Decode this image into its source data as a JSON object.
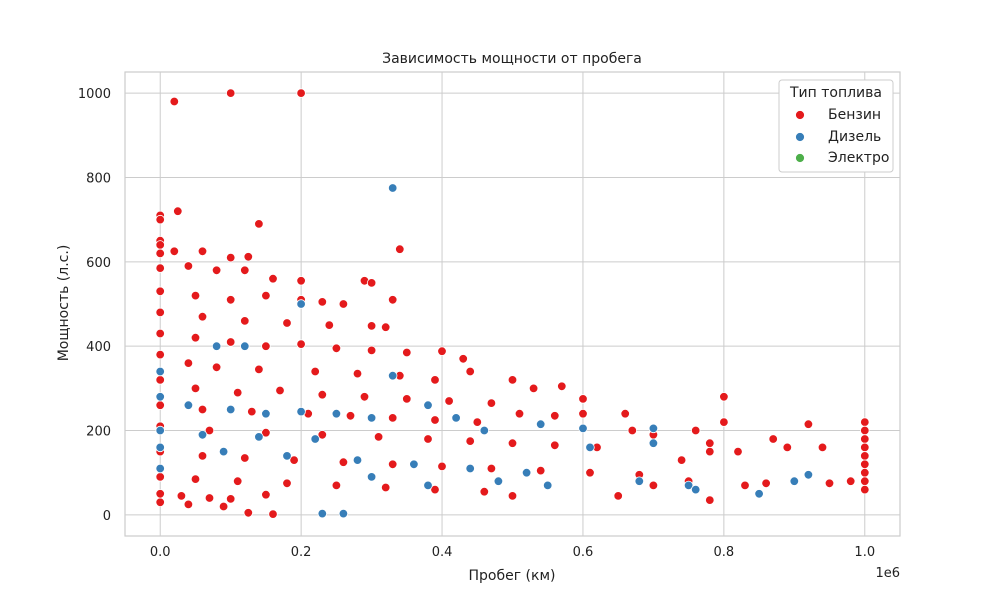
{
  "chart_data": {
    "type": "scatter",
    "title": "Зависимость мощности от пробега",
    "xlabel": "Пробег (км)",
    "ylabel": "Мощность (л.с.)",
    "x_offset_label": "1e6",
    "xlim": [
      -50000,
      1050000
    ],
    "ylim": [
      -50,
      1050
    ],
    "x_ticks": [
      0,
      200000,
      400000,
      600000,
      800000,
      1000000
    ],
    "x_tick_labels": [
      "0.0",
      "0.2",
      "0.4",
      "0.6",
      "0.8",
      "1.0"
    ],
    "y_ticks": [
      0,
      200,
      400,
      600,
      800,
      1000
    ],
    "y_tick_labels": [
      "0",
      "200",
      "400",
      "600",
      "800",
      "1000"
    ],
    "grid": true,
    "legend": {
      "title": "Тип топлива",
      "placement": "top-right",
      "entries": [
        {
          "label": "Бензин",
          "color": "#e41a1c"
        },
        {
          "label": "Дизель",
          "color": "#377eb8"
        },
        {
          "label": "Электро",
          "color": "#4daf4a"
        }
      ]
    },
    "series": [
      {
        "name": "Бензин",
        "color": "#e41a1c",
        "points": [
          [
            20000,
            980
          ],
          [
            100000,
            1000
          ],
          [
            200000,
            1000
          ],
          [
            25000,
            720
          ],
          [
            0,
            710
          ],
          [
            0,
            700
          ],
          [
            140000,
            690
          ],
          [
            340000,
            630
          ],
          [
            0,
            650
          ],
          [
            0,
            640
          ],
          [
            0,
            620
          ],
          [
            20000,
            625
          ],
          [
            60000,
            625
          ],
          [
            100000,
            610
          ],
          [
            125000,
            612
          ],
          [
            0,
            585
          ],
          [
            40000,
            590
          ],
          [
            80000,
            580
          ],
          [
            120000,
            580
          ],
          [
            160000,
            560
          ],
          [
            200000,
            555
          ],
          [
            290000,
            555
          ],
          [
            300000,
            550
          ],
          [
            0,
            530
          ],
          [
            50000,
            520
          ],
          [
            100000,
            510
          ],
          [
            150000,
            520
          ],
          [
            200000,
            510
          ],
          [
            230000,
            505
          ],
          [
            260000,
            500
          ],
          [
            330000,
            510
          ],
          [
            0,
            480
          ],
          [
            60000,
            470
          ],
          [
            120000,
            460
          ],
          [
            180000,
            455
          ],
          [
            240000,
            450
          ],
          [
            300000,
            448
          ],
          [
            320000,
            445
          ],
          [
            0,
            430
          ],
          [
            50000,
            420
          ],
          [
            100000,
            410
          ],
          [
            150000,
            400
          ],
          [
            200000,
            405
          ],
          [
            250000,
            395
          ],
          [
            300000,
            390
          ],
          [
            350000,
            385
          ],
          [
            400000,
            388
          ],
          [
            430000,
            370
          ],
          [
            0,
            380
          ],
          [
            40000,
            360
          ],
          [
            80000,
            350
          ],
          [
            140000,
            345
          ],
          [
            220000,
            340
          ],
          [
            280000,
            335
          ],
          [
            340000,
            330
          ],
          [
            390000,
            320
          ],
          [
            440000,
            340
          ],
          [
            500000,
            320
          ],
          [
            0,
            320
          ],
          [
            50000,
            300
          ],
          [
            110000,
            290
          ],
          [
            170000,
            295
          ],
          [
            230000,
            285
          ],
          [
            290000,
            280
          ],
          [
            350000,
            275
          ],
          [
            410000,
            270
          ],
          [
            470000,
            265
          ],
          [
            530000,
            300
          ],
          [
            570000,
            305
          ],
          [
            600000,
            275
          ],
          [
            0,
            260
          ],
          [
            60000,
            250
          ],
          [
            130000,
            245
          ],
          [
            210000,
            240
          ],
          [
            270000,
            235
          ],
          [
            330000,
            230
          ],
          [
            390000,
            225
          ],
          [
            450000,
            220
          ],
          [
            510000,
            240
          ],
          [
            560000,
            235
          ],
          [
            600000,
            240
          ],
          [
            660000,
            240
          ],
          [
            0,
            210
          ],
          [
            70000,
            200
          ],
          [
            150000,
            195
          ],
          [
            230000,
            190
          ],
          [
            310000,
            185
          ],
          [
            380000,
            180
          ],
          [
            440000,
            175
          ],
          [
            500000,
            170
          ],
          [
            560000,
            165
          ],
          [
            620000,
            160
          ],
          [
            670000,
            200
          ],
          [
            700000,
            190
          ],
          [
            760000,
            200
          ],
          [
            780000,
            170
          ],
          [
            800000,
            280
          ],
          [
            800000,
            220
          ],
          [
            870000,
            180
          ],
          [
            920000,
            215
          ],
          [
            1000000,
            220
          ],
          [
            1000000,
            200
          ],
          [
            1000000,
            180
          ],
          [
            1000000,
            160
          ],
          [
            1000000,
            140
          ],
          [
            1000000,
            120
          ],
          [
            1000000,
            100
          ],
          [
            1000000,
            80
          ],
          [
            1000000,
            60
          ],
          [
            0,
            150
          ],
          [
            60000,
            140
          ],
          [
            120000,
            135
          ],
          [
            190000,
            130
          ],
          [
            260000,
            125
          ],
          [
            330000,
            120
          ],
          [
            400000,
            115
          ],
          [
            470000,
            110
          ],
          [
            540000,
            105
          ],
          [
            610000,
            100
          ],
          [
            680000,
            95
          ],
          [
            740000,
            130
          ],
          [
            780000,
            150
          ],
          [
            820000,
            150
          ],
          [
            890000,
            160
          ],
          [
            940000,
            160
          ],
          [
            0,
            90
          ],
          [
            50000,
            85
          ],
          [
            110000,
            80
          ],
          [
            180000,
            75
          ],
          [
            250000,
            70
          ],
          [
            320000,
            65
          ],
          [
            390000,
            60
          ],
          [
            460000,
            55
          ],
          [
            500000,
            45
          ],
          [
            650000,
            45
          ],
          [
            700000,
            70
          ],
          [
            750000,
            80
          ],
          [
            780000,
            35
          ],
          [
            830000,
            70
          ],
          [
            860000,
            75
          ],
          [
            900000,
            80
          ],
          [
            950000,
            75
          ],
          [
            980000,
            80
          ],
          [
            0,
            30
          ],
          [
            40000,
            25
          ],
          [
            90000,
            20
          ],
          [
            125000,
            5
          ],
          [
            160000,
            2
          ],
          [
            0,
            50
          ],
          [
            30000,
            45
          ],
          [
            70000,
            40
          ],
          [
            100000,
            38
          ],
          [
            150000,
            48
          ]
        ]
      },
      {
        "name": "Дизель",
        "color": "#377eb8",
        "points": [
          [
            330000,
            775
          ],
          [
            200000,
            500
          ],
          [
            0,
            340
          ],
          [
            80000,
            400
          ],
          [
            120000,
            400
          ],
          [
            0,
            280
          ],
          [
            40000,
            260
          ],
          [
            100000,
            250
          ],
          [
            150000,
            240
          ],
          [
            200000,
            245
          ],
          [
            250000,
            240
          ],
          [
            0,
            200
          ],
          [
            60000,
            190
          ],
          [
            140000,
            185
          ],
          [
            220000,
            180
          ],
          [
            300000,
            230
          ],
          [
            330000,
            330
          ],
          [
            380000,
            260
          ],
          [
            420000,
            230
          ],
          [
            460000,
            200
          ],
          [
            0,
            110
          ],
          [
            0,
            160
          ],
          [
            90000,
            150
          ],
          [
            180000,
            140
          ],
          [
            280000,
            130
          ],
          [
            360000,
            120
          ],
          [
            440000,
            110
          ],
          [
            520000,
            100
          ],
          [
            540000,
            215
          ],
          [
            600000,
            205
          ],
          [
            610000,
            160
          ],
          [
            680000,
            80
          ],
          [
            700000,
            170
          ],
          [
            700000,
            205
          ],
          [
            750000,
            70
          ],
          [
            760000,
            60
          ],
          [
            850000,
            50
          ],
          [
            900000,
            80
          ],
          [
            920000,
            95
          ],
          [
            230000,
            3
          ],
          [
            260000,
            3
          ],
          [
            480000,
            80
          ],
          [
            550000,
            70
          ],
          [
            380000,
            70
          ],
          [
            300000,
            90
          ]
        ]
      },
      {
        "name": "Электро",
        "color": "#4daf4a",
        "points": []
      }
    ]
  }
}
